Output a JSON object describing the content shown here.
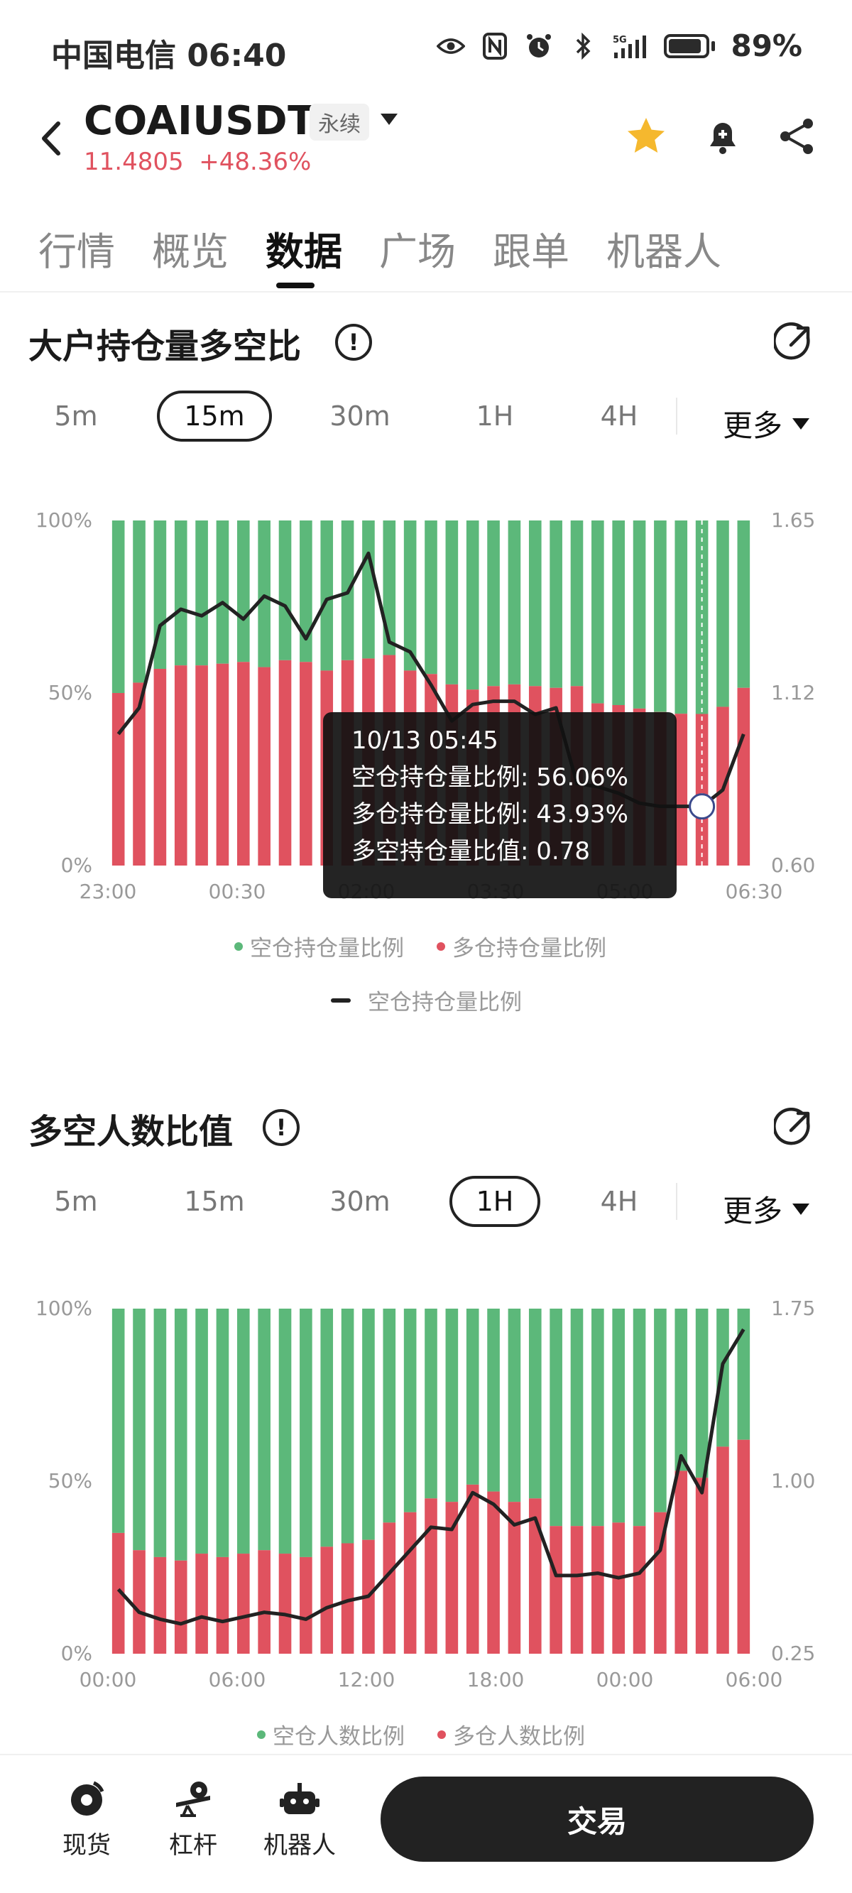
{
  "status_bar": {
    "carrier_time": "中国电信 06:40",
    "network": "5G",
    "battery": "89%"
  },
  "header": {
    "symbol": "COAIUSDT",
    "contract_type": "永续",
    "last_price": "11.4805",
    "change": "+48.36%",
    "icons": [
      "back-arrow-icon",
      "star-icon",
      "bell-plus-icon",
      "share-icon"
    ],
    "colors": {
      "price": "#e0525f",
      "star": "#f5b82e"
    }
  },
  "tabs": [
    "行情",
    "概览",
    "数据",
    "广场",
    "跟单",
    "机器人"
  ],
  "active_tab": "数据",
  "section1": {
    "title": "大户持仓量多空比",
    "periods": [
      "5m",
      "15m",
      "30m",
      "1H",
      "4H"
    ],
    "selected": "15m",
    "more": "更多",
    "tooltip": {
      "time": "10/13 05:45",
      "short_ratio": "空仓持仓量比例: 56.06%",
      "long_ratio": "多仓持仓量比例: 43.93%",
      "long_short_value": "多空持仓量比值: 0.78"
    },
    "legend": [
      "空仓持仓量比例",
      "多仓持仓量比例",
      "空仓持仓量比例"
    ]
  },
  "section2": {
    "title": "多空人数比值",
    "periods": [
      "5m",
      "15m",
      "30m",
      "1H",
      "4H"
    ],
    "selected": "1H",
    "more": "更多",
    "legend": [
      "空仓人数比例",
      "多仓人数比例"
    ]
  },
  "bottom_bar": {
    "items": [
      "现货",
      "杠杆",
      "机器人"
    ],
    "trade": "交易"
  },
  "chart_data": [
    {
      "type": "bar",
      "stacked": true,
      "title": "大户持仓量多空比",
      "x_ticks": [
        "23:00",
        "00:30",
        "02:00",
        "03:30",
        "05:00",
        "06:30"
      ],
      "y_left_ticks": [
        "0%",
        "50%",
        "100%"
      ],
      "y_right_ticks": [
        "0.60",
        "1.12",
        "1.65"
      ],
      "y_right_range": [
        0.6,
        1.65
      ],
      "series": [
        {
          "name": "多仓持仓量比例",
          "color": "#e0525f",
          "values": [
            50,
            53,
            57,
            58,
            58,
            58.5,
            59,
            57.5,
            59.5,
            59,
            56.5,
            59.5,
            60,
            61,
            56.5,
            55.5,
            52.5,
            51,
            52,
            52.5,
            52,
            51.5,
            52,
            47,
            46.5,
            45.5,
            44.5,
            44,
            43.93,
            46,
            51.5
          ]
        },
        {
          "name": "空仓持仓量比例",
          "color": "#5cb87a",
          "values": [
            50,
            47,
            43,
            42,
            42,
            41.5,
            41,
            42.5,
            40.5,
            41,
            43.5,
            40.5,
            40,
            39,
            43.5,
            44.5,
            47.5,
            49,
            48,
            47.5,
            48,
            48.5,
            48,
            53,
            53.5,
            54.5,
            55.5,
            56,
            56.06,
            54,
            48.5
          ]
        },
        {
          "name": "空仓持仓量比例",
          "type": "line",
          "color": "#222222",
          "axis": "right",
          "values": [
            1.0,
            1.08,
            1.33,
            1.38,
            1.36,
            1.4,
            1.35,
            1.42,
            1.39,
            1.29,
            1.41,
            1.43,
            1.55,
            1.28,
            1.25,
            1.15,
            1.04,
            1.09,
            1.1,
            1.1,
            1.06,
            1.08,
            0.85,
            0.84,
            0.82,
            0.79,
            0.78,
            0.78,
            0.78,
            0.83,
            1.0
          ]
        }
      ]
    },
    {
      "type": "bar",
      "stacked": true,
      "title": "多空人数比值",
      "x_ticks": [
        "00:00",
        "06:00",
        "12:00",
        "18:00",
        "00:00",
        "06:00"
      ],
      "y_left_ticks": [
        "0%",
        "50%",
        "100%"
      ],
      "y_right_ticks": [
        "0.25",
        "1.00",
        "1.75"
      ],
      "y_right_range": [
        0.25,
        1.75
      ],
      "series": [
        {
          "name": "多仓人数比例",
          "color": "#e0525f",
          "values": [
            35,
            30,
            28,
            27,
            29,
            28,
            29,
            30,
            29,
            28,
            31,
            32,
            33,
            38,
            41,
            45,
            44,
            49,
            47,
            44,
            45,
            37,
            37,
            37,
            38,
            37,
            41,
            53,
            51,
            60,
            62
          ]
        },
        {
          "name": "空仓人数比例",
          "color": "#5cb87a",
          "values": [
            65,
            70,
            72,
            73,
            71,
            72,
            71,
            70,
            71,
            72,
            69,
            68,
            67,
            62,
            59,
            55,
            56,
            51,
            53,
            56,
            55,
            63,
            63,
            63,
            62,
            63,
            59,
            47,
            49,
            40,
            38
          ]
        },
        {
          "name": "多空人数比值",
          "type": "line",
          "color": "#222222",
          "axis": "right",
          "values": [
            0.53,
            0.43,
            0.4,
            0.38,
            0.41,
            0.39,
            0.41,
            0.43,
            0.42,
            0.4,
            0.45,
            0.48,
            0.5,
            0.6,
            0.7,
            0.8,
            0.79,
            0.95,
            0.9,
            0.81,
            0.84,
            0.59,
            0.59,
            0.6,
            0.58,
            0.6,
            0.7,
            1.11,
            0.95,
            1.51,
            1.66
          ]
        }
      ]
    }
  ]
}
